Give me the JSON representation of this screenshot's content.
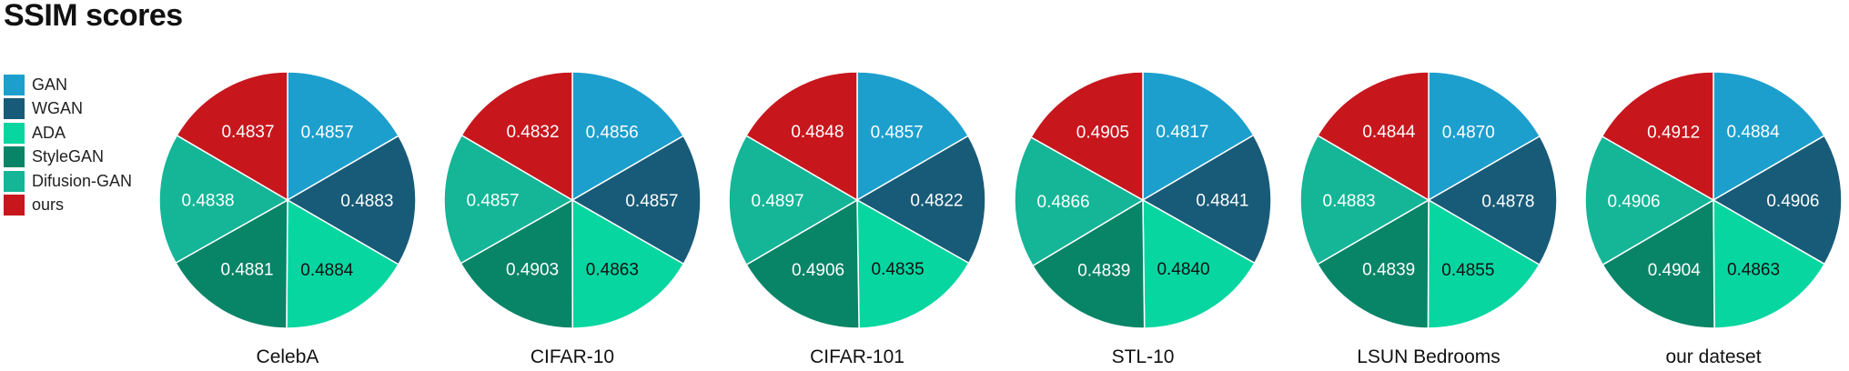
{
  "chart_data": {
    "type": "pie",
    "title": "SSIM scores",
    "legend_position": "left",
    "series": [
      {
        "name": "GAN",
        "color": "#1c9fcd"
      },
      {
        "name": "WGAN",
        "color": "#185b78"
      },
      {
        "name": "ADA",
        "color": "#07d6a1"
      },
      {
        "name": "StyleGAN",
        "color": "#088467"
      },
      {
        "name": "Difusion-GAN",
        "color": "#14b697"
      },
      {
        "name": "ours",
        "color": "#c8161d"
      }
    ],
    "charts": [
      {
        "label": "CelebA",
        "values": [
          "0.4857",
          "0.4883",
          "0.4884",
          "0.4881",
          "0.4838",
          "0.4837"
        ]
      },
      {
        "label": "CIFAR-10",
        "values": [
          "0.4856",
          "0.4857",
          "0.4863",
          "0.4903",
          "0.4857",
          "0.4832"
        ]
      },
      {
        "label": "CIFAR-101",
        "values": [
          "0.4857",
          "0.4822",
          "0.4835",
          "0.4906",
          "0.4897",
          "0.4848"
        ]
      },
      {
        "label": "STL-10",
        "values": [
          "0.4817",
          "0.4841",
          "0.4840",
          "0.4839",
          "0.4866",
          "0.4905"
        ]
      },
      {
        "label": "LSUN Bedrooms",
        "values": [
          "0.4870",
          "0.4878",
          "0.4855",
          "0.4839",
          "0.4883",
          "0.4844"
        ]
      },
      {
        "label": "our dateset",
        "values": [
          "0.4884",
          "0.4906",
          "0.4863",
          "0.4904",
          "0.4906",
          "0.4912"
        ]
      }
    ],
    "label_colors": [
      "#ffffff",
      "#ffffff",
      "#111111",
      "#ffffff",
      "#ffffff",
      "#ffffff"
    ]
  }
}
